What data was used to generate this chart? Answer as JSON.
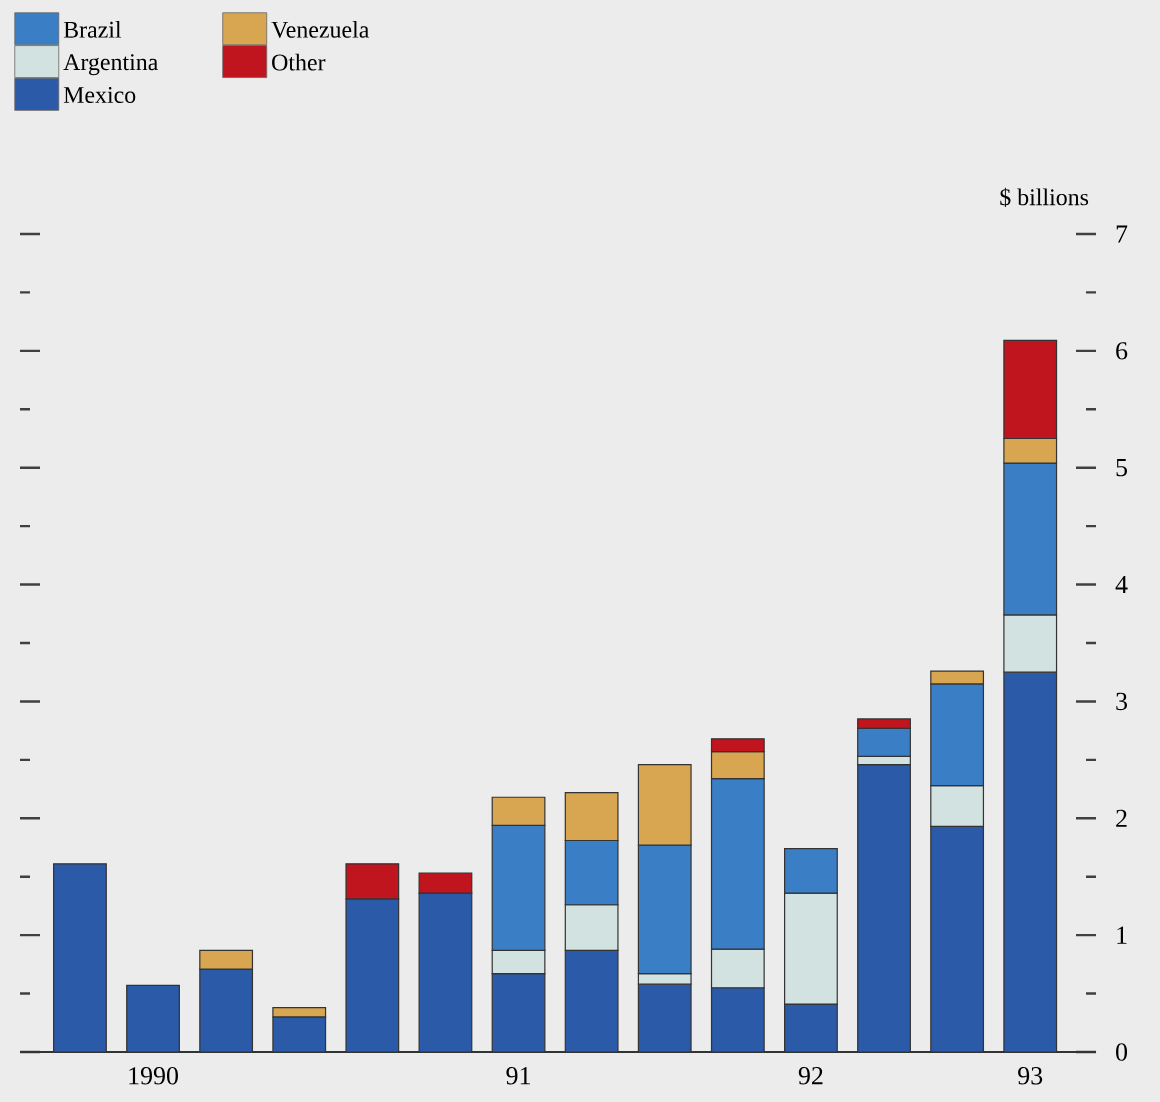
{
  "chart_data": {
    "type": "bar",
    "stacked": true,
    "ylabel": "$ billions",
    "categories": [
      null,
      "1990",
      null,
      null,
      null,
      null,
      "91",
      null,
      null,
      null,
      "92",
      null,
      null,
      "93"
    ],
    "series": [
      {
        "name": "Mexico",
        "color": "#2a5aa8",
        "values": [
          1.61,
          0.57,
          0.71,
          0.3,
          1.31,
          1.36,
          0.67,
          0.87,
          0.58,
          0.55,
          0.41,
          2.46,
          1.93,
          3.25
        ]
      },
      {
        "name": "Argentina",
        "color": "#d2e2e0",
        "values": [
          null,
          null,
          null,
          null,
          null,
          null,
          0.2,
          0.39,
          0.09,
          0.33,
          0.95,
          0.07,
          0.35,
          0.49
        ]
      },
      {
        "name": "Brazil",
        "color": "#3a7fc6",
        "values": [
          null,
          null,
          null,
          null,
          null,
          null,
          1.07,
          0.55,
          1.1,
          1.46,
          0.38,
          0.24,
          0.87,
          1.3
        ]
      },
      {
        "name": "Venezuela",
        "color": "#d8a650",
        "values": [
          null,
          null,
          0.16,
          0.08,
          null,
          null,
          0.24,
          0.41,
          0.69,
          0.23,
          null,
          null,
          0.11,
          0.21
        ]
      },
      {
        "name": "Other",
        "color": "#c0141e",
        "values": [
          null,
          null,
          null,
          null,
          0.3,
          0.17,
          null,
          null,
          null,
          0.11,
          null,
          0.08,
          null,
          0.84
        ]
      }
    ],
    "ylim": [
      0,
      7
    ],
    "yticks": [
      0,
      {
        "value": 0.5,
        "label": null
      },
      1,
      {
        "value": 1.5,
        "label": null
      },
      2,
      {
        "value": 2.5,
        "label": null
      },
      3,
      {
        "value": 3.5,
        "label": null
      },
      4,
      {
        "value": 4.5,
        "label": null
      },
      5,
      {
        "value": 5.5,
        "label": null
      },
      6,
      {
        "value": 6.5,
        "label": null
      },
      7
    ],
    "legend": "top left"
  }
}
